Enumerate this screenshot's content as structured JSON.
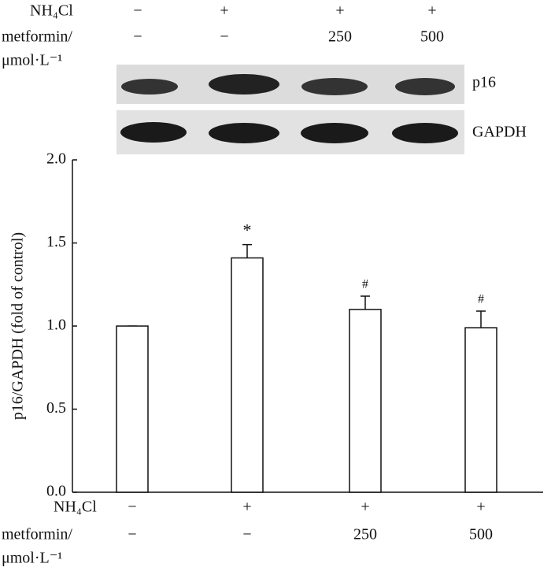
{
  "chart_data": {
    "type": "bar",
    "blot_treatments": [
      {
        "name": [
          "NH₄Cl"
        ],
        "levels": [
          "−",
          "+",
          "+",
          "+"
        ]
      },
      {
        "name": [
          "metformin/",
          "μmol·L⁻¹"
        ],
        "levels": [
          "−",
          "−",
          "250",
          "500"
        ]
      }
    ],
    "blot_labels": [
      "p16",
      "GAPDH"
    ],
    "values": [
      1.0,
      1.41,
      1.1,
      0.99
    ],
    "errors": [
      0,
      0.08,
      0.08,
      0.1
    ],
    "annotations": [
      null,
      "*",
      "#",
      "#"
    ],
    "color": "#ffffff",
    "ylabel": "p16/GAPDH (fold of control)",
    "ylim": [
      0,
      2
    ],
    "yticks": [
      {
        "value": 0,
        "label": "0.0"
      },
      {
        "value": 0.5,
        "label": "0.5"
      },
      {
        "value": 1,
        "label": "1.0"
      },
      {
        "value": 1.5,
        "label": "1.5"
      },
      {
        "value": 2,
        "label": "2.0"
      }
    ],
    "treatments": [
      {
        "name": [
          "NH₄Cl"
        ],
        "levels": [
          "−",
          "+",
          "+",
          "+"
        ]
      },
      {
        "name": [
          "metformin/",
          "μmol·L⁻¹"
        ],
        "levels": [
          "−",
          "−",
          "250",
          "500"
        ]
      }
    ]
  }
}
